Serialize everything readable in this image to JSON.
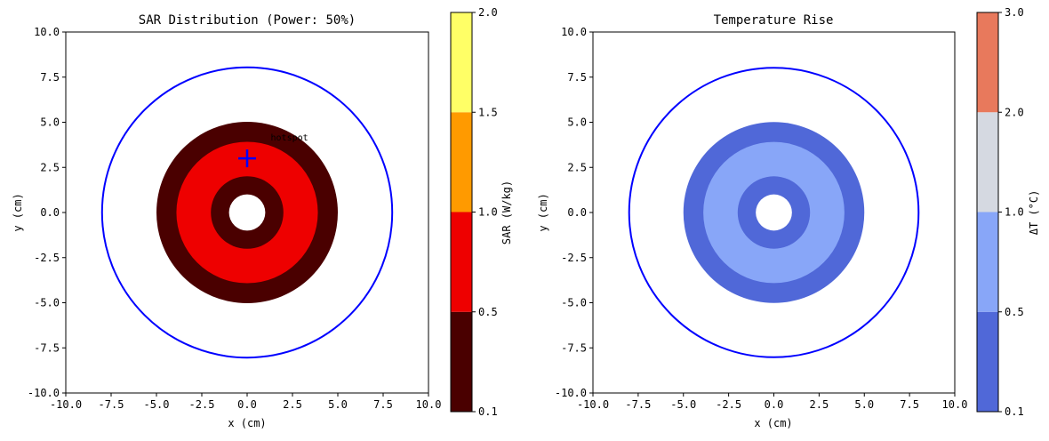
{
  "chart_data": [
    {
      "type": "heatmap",
      "title": "SAR Distribution (Power: 50%)",
      "xlabel": "x (cm)",
      "ylabel": "y (cm)",
      "xlim": [
        -10,
        10
      ],
      "ylim": [
        -10,
        10
      ],
      "xticks": [
        "-10.0",
        "-7.5",
        "-5.0",
        "-2.5",
        "0.0",
        "2.5",
        "5.0",
        "7.5",
        "10.0"
      ],
      "yticks": [
        "10.0",
        "7.5",
        "5.0",
        "2.5",
        "0.0",
        "-2.5",
        "-5.0",
        "-7.5",
        "-10.0"
      ],
      "boundary_circle": {
        "center": [
          0,
          0
        ],
        "radius": 8,
        "color": "#0000ff"
      },
      "rings": [
        {
          "r_outer": 5.0,
          "color": "#4a0000"
        },
        {
          "r_outer": 3.9,
          "color": "#ee0000"
        },
        {
          "r_outer": 2.0,
          "color": "#4a0000"
        },
        {
          "r_outer": 1.0,
          "color": "#ffffff"
        }
      ],
      "marker": {
        "x": 0,
        "y": 3,
        "symbol": "+",
        "color": "#0000ff"
      },
      "annotation": {
        "text": "hotspot",
        "x": 1.3,
        "y": 4.0
      },
      "colorbar": {
        "label": "SAR (W/kg)",
        "levels": [
          0.1,
          0.5,
          1.0,
          1.5,
          2.0
        ],
        "tick_labels": [
          "0.1",
          "0.5",
          "1.0",
          "1.5",
          "2.0"
        ],
        "colors": [
          "#4a0000",
          "#ee0000",
          "#ff9a00",
          "#ffff66"
        ]
      }
    },
    {
      "type": "heatmap",
      "title": "Temperature Rise",
      "xlabel": "x (cm)",
      "ylabel": "y (cm)",
      "xlim": [
        -10,
        10
      ],
      "ylim": [
        -10,
        10
      ],
      "xticks": [
        "-10.0",
        "-7.5",
        "-5.0",
        "-2.5",
        "0.0",
        "2.5",
        "5.0",
        "7.5",
        "10.0"
      ],
      "yticks": [
        "10.0",
        "7.5",
        "5.0",
        "2.5",
        "0.0",
        "-2.5",
        "-5.0",
        "-7.5",
        "-10.0"
      ],
      "boundary_circle": {
        "center": [
          0,
          0
        ],
        "radius": 8,
        "color": "#0000ff"
      },
      "rings": [
        {
          "r_outer": 5.0,
          "color": "#5068d8"
        },
        {
          "r_outer": 3.9,
          "color": "#88a6f8"
        },
        {
          "r_outer": 2.0,
          "color": "#5068d8"
        },
        {
          "r_outer": 1.0,
          "color": "#ffffff"
        }
      ],
      "colorbar": {
        "label": "ΔT (°C)",
        "levels": [
          0.1,
          0.5,
          1.0,
          2.0,
          3.0
        ],
        "tick_labels": [
          "0.1",
          "0.5",
          "1.0",
          "2.0",
          "3.0"
        ],
        "colors": [
          "#5068d8",
          "#88a6f8",
          "#d5d9e1",
          "#e8795c"
        ]
      }
    }
  ]
}
